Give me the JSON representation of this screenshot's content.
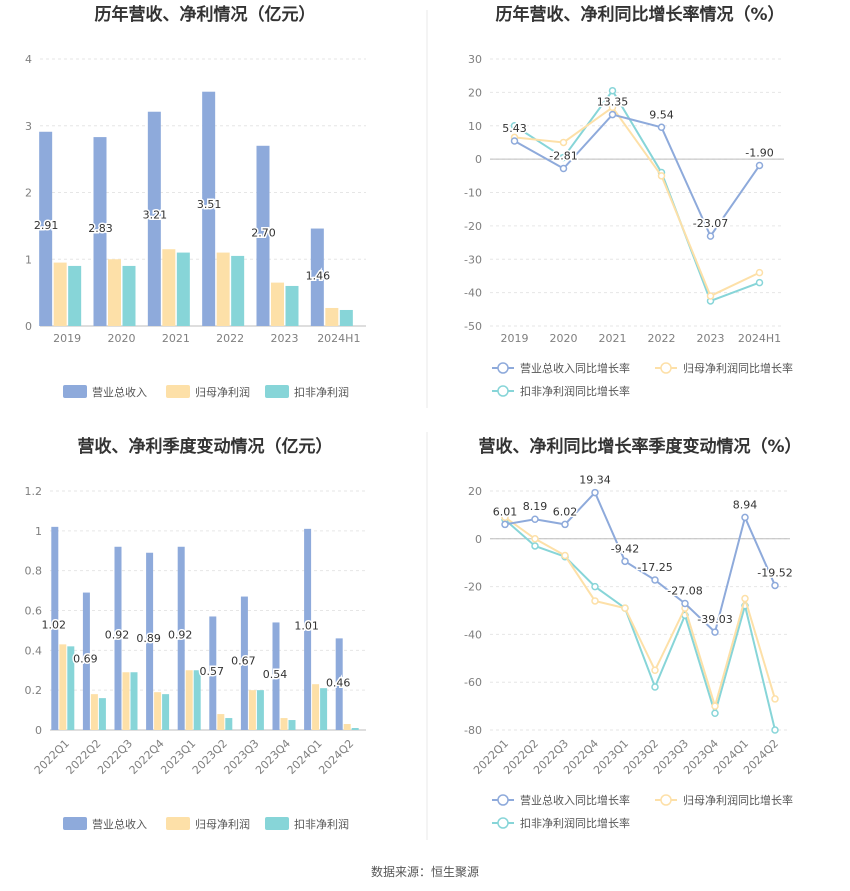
{
  "footer": {
    "source": "数据来源：恒生聚源"
  },
  "colors": {
    "revenue": "#8eaadb",
    "net_profit": "#fde0a8",
    "deducted_profit": "#87d5d8"
  },
  "chart_data": [
    {
      "type": "bar",
      "title": "历年营收、净利情况（亿元）",
      "categories": [
        "2019",
        "2020",
        "2021",
        "2022",
        "2023",
        "2024H1"
      ],
      "ylim": [
        0,
        4
      ],
      "yticks": [
        "0",
        "1",
        "2",
        "3",
        "4"
      ],
      "series": [
        {
          "name": "营业总收入",
          "values": [
            2.91,
            2.83,
            3.21,
            3.51,
            2.7,
            1.46
          ],
          "labels": [
            "2.91",
            "2.83",
            "3.21",
            "3.51",
            "2.70",
            "1.46"
          ]
        },
        {
          "name": "归母净利润",
          "values": [
            0.95,
            1.0,
            1.15,
            1.1,
            0.65,
            0.27
          ]
        },
        {
          "name": "扣非净利润",
          "values": [
            0.9,
            0.9,
            1.1,
            1.05,
            0.6,
            0.24
          ]
        }
      ]
    },
    {
      "type": "line",
      "title": "历年营收、净利同比增长率情况（%）",
      "categories": [
        "2019",
        "2020",
        "2021",
        "2022",
        "2023",
        "2024H1"
      ],
      "ylim": [
        -50,
        30
      ],
      "yticks": [
        "-50",
        "-40",
        "-30",
        "-20",
        "-10",
        "0",
        "10",
        "20",
        "30"
      ],
      "series": [
        {
          "name": "营业总收入同比增长率",
          "values": [
            5.43,
            -2.81,
            13.35,
            9.54,
            -23.07,
            -1.9
          ],
          "labels": [
            "5.43",
            "-2.81",
            "13.35",
            "9.54",
            "-23.07",
            "-1.90"
          ]
        },
        {
          "name": "归母净利润同比增长率",
          "values": [
            6.5,
            5.0,
            15.5,
            -5.0,
            -41.0,
            -34.0
          ]
        },
        {
          "name": "扣非净利润同比增长率",
          "values": [
            10.0,
            0.5,
            20.5,
            -4.0,
            -42.5,
            -37.0
          ]
        }
      ]
    },
    {
      "type": "bar",
      "title": "营收、净利季度变动情况（亿元）",
      "categories": [
        "2022Q1",
        "2022Q2",
        "2022Q3",
        "2022Q4",
        "2023Q1",
        "2023Q2",
        "2023Q3",
        "2023Q4",
        "2024Q1",
        "2024Q2"
      ],
      "ylim": [
        0,
        1.2
      ],
      "yticks": [
        "0",
        "0.2",
        "0.4",
        "0.6",
        "0.8",
        "1",
        "1.2"
      ],
      "series": [
        {
          "name": "营业总收入",
          "values": [
            1.02,
            0.69,
            0.92,
            0.89,
            0.92,
            0.57,
            0.67,
            0.54,
            1.01,
            0.46
          ],
          "labels": [
            "1.02",
            "0.69",
            "0.92",
            "0.89",
            "0.92",
            "0.57",
            "0.67",
            "0.54",
            "1.01",
            "0.46"
          ]
        },
        {
          "name": "归母净利润",
          "values": [
            0.43,
            0.18,
            0.29,
            0.19,
            0.3,
            0.08,
            0.2,
            0.06,
            0.23,
            0.03
          ]
        },
        {
          "name": "扣非净利润",
          "values": [
            0.42,
            0.16,
            0.29,
            0.18,
            0.3,
            0.06,
            0.2,
            0.05,
            0.21,
            0.01
          ]
        }
      ]
    },
    {
      "type": "line",
      "title": "营收、净利同比增长率季度变动情况（%）",
      "categories": [
        "2022Q1",
        "2022Q2",
        "2022Q3",
        "2022Q4",
        "2023Q1",
        "2023Q2",
        "2023Q3",
        "2023Q4",
        "2024Q1",
        "2024Q2"
      ],
      "ylim": [
        -80,
        20
      ],
      "yticks": [
        "-80",
        "-60",
        "-40",
        "-20",
        "0",
        "20"
      ],
      "series": [
        {
          "name": "营业总收入同比增长率",
          "values": [
            6.01,
            8.19,
            6.02,
            19.34,
            -9.42,
            -17.25,
            -27.08,
            -39.03,
            8.94,
            -19.52
          ],
          "labels": [
            "6.01",
            "8.19",
            "6.02",
            "19.34",
            "-9.42",
            "-17.25",
            "-27.08",
            "-39.03",
            "8.94",
            "-19.52"
          ]
        },
        {
          "name": "归母净利润同比增长率",
          "values": [
            9.0,
            0.0,
            -7.0,
            -26.0,
            -29.0,
            -55.0,
            -29.0,
            -70.0,
            -25.0,
            -67.0
          ]
        },
        {
          "name": "扣非净利润同比增长率",
          "values": [
            8.0,
            -3.0,
            -7.5,
            -20.0,
            -29.0,
            -62.0,
            -32.0,
            -73.0,
            -28.0,
            -80.0
          ]
        }
      ]
    }
  ]
}
